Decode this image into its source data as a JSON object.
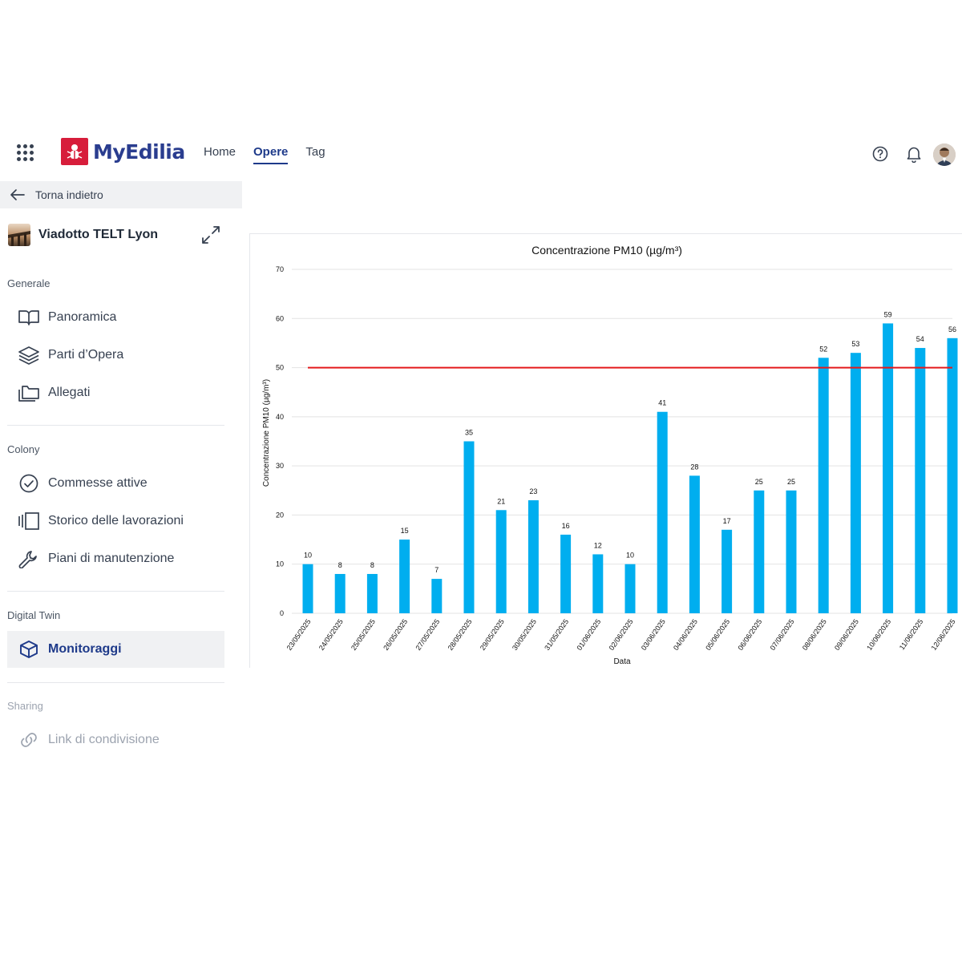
{
  "app": {
    "brand": "MyEdilia",
    "nav": [
      {
        "label": "Home",
        "active": false
      },
      {
        "label": "Opere",
        "active": true
      },
      {
        "label": "Tag",
        "active": false
      }
    ],
    "icons": {
      "apps": "apps-grid-icon",
      "help": "help-icon",
      "notifications": "bell-icon"
    },
    "colors": {
      "brand_red": "#d71d3b",
      "brand_blue": "#2a3d8f",
      "bar": "#00aeef",
      "threshold": "#e41a1c"
    }
  },
  "sidebar": {
    "back_label": "Torna indietro",
    "project_name": "Viadotto TELT Lyon",
    "sections": [
      {
        "title": "Generale",
        "items": [
          {
            "label": "Panoramica",
            "icon": "book-open-icon"
          },
          {
            "label": "Parti d’Opera",
            "icon": "layers-icon"
          },
          {
            "label": "Allegati",
            "icon": "folders-icon"
          }
        ]
      },
      {
        "title": "Colony",
        "items": [
          {
            "label": "Commesse attive",
            "icon": "check-circle-icon"
          },
          {
            "label": "Storico delle lavorazioni",
            "icon": "history-stack-icon"
          },
          {
            "label": "Piani di manutenzione",
            "icon": "wrench-icon"
          }
        ]
      },
      {
        "title": "Digital Twin",
        "items": [
          {
            "label": "Monitoraggi",
            "icon": "cube-icon",
            "active": true
          }
        ]
      },
      {
        "title": "Sharing",
        "items": [
          {
            "label": "Link di condivisione",
            "icon": "link-icon",
            "disabled": true
          }
        ]
      }
    ]
  },
  "chart_data": {
    "type": "bar",
    "title": "Concentrazione PM10 (µg/m³)",
    "xlabel": "Data",
    "ylabel": "Concentrazione PM10 (µg/m³)",
    "ylim": [
      0,
      70
    ],
    "yticks": [
      "0",
      "10",
      "20",
      "30",
      "40",
      "50",
      "60",
      "70"
    ],
    "grid": true,
    "threshold": 50,
    "categories": [
      "23/05/2025",
      "24/05/2025",
      "25/05/2025",
      "26/05/2025",
      "27/05/2025",
      "28/05/2025",
      "29/05/2025",
      "30/05/2025",
      "31/05/2025",
      "01/06/2025",
      "02/06/2025",
      "03/06/2025",
      "04/06/2025",
      "05/06/2025",
      "06/06/2025",
      "07/06/2025",
      "08/06/2025",
      "09/06/2025",
      "10/06/2025",
      "11/06/2025",
      "12/06/2025"
    ],
    "values": [
      10,
      8,
      8,
      15,
      7,
      35,
      21,
      23,
      16,
      12,
      10,
      41,
      28,
      17,
      25,
      25,
      52,
      53,
      59,
      54,
      56
    ]
  }
}
